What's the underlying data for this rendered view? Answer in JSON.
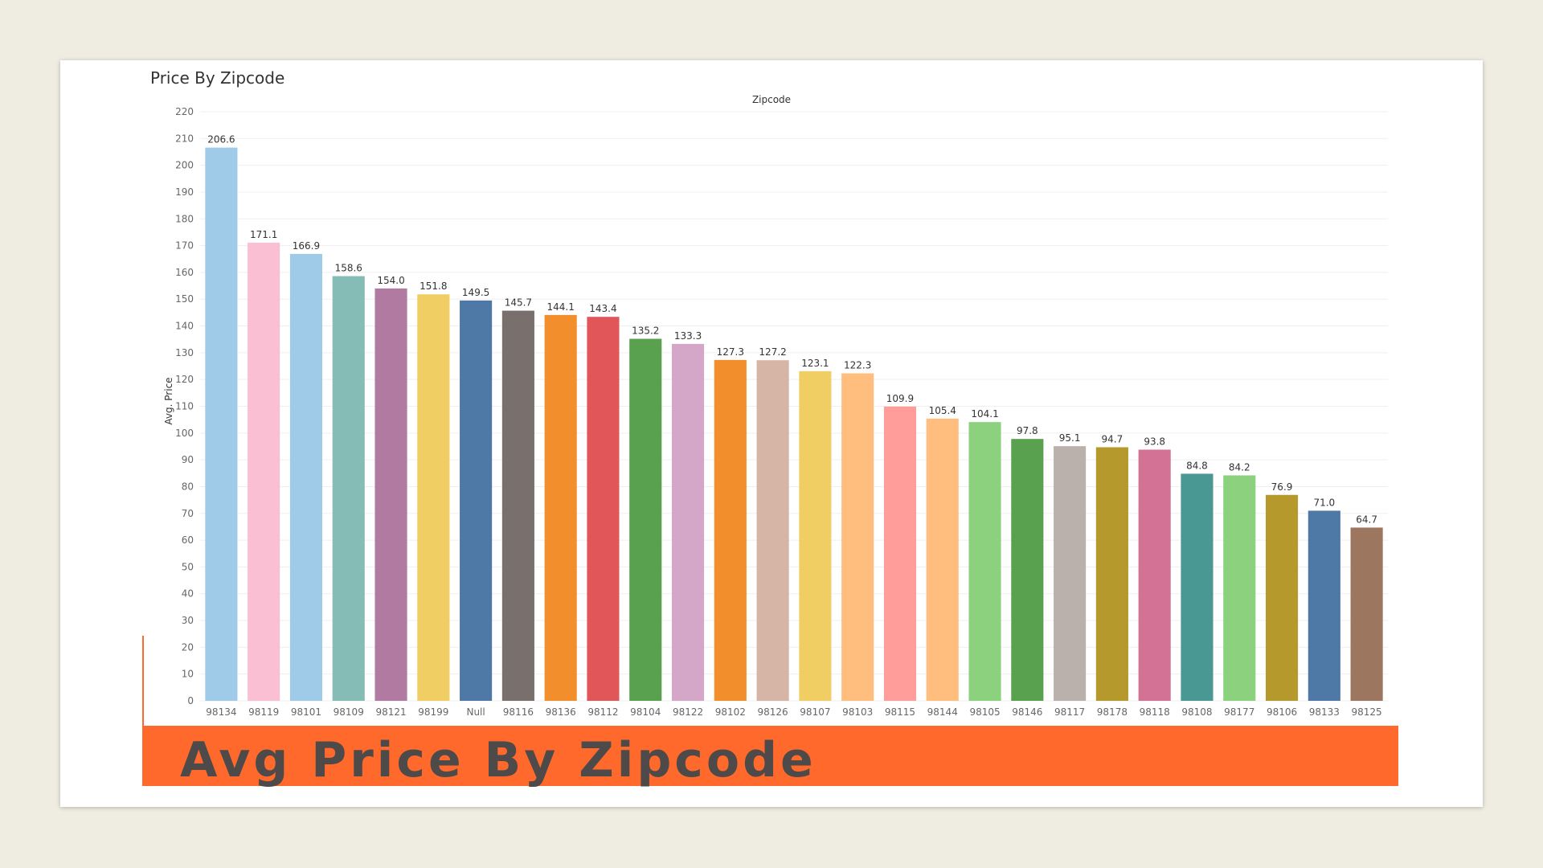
{
  "card": {
    "title": "Price By Zipcode",
    "banner_text": "Avg Price By Zipcode"
  },
  "chart_data": {
    "type": "bar",
    "title": "Price By Zipcode",
    "xlabel": "Zipcode",
    "ylabel": "Avg. Price",
    "ylim": [
      0,
      220
    ],
    "yticks": [
      0,
      10,
      20,
      30,
      40,
      50,
      60,
      70,
      80,
      90,
      100,
      110,
      120,
      130,
      140,
      150,
      160,
      170,
      180,
      190,
      200,
      210,
      220
    ],
    "grid": true,
    "categories": [
      "98134",
      "98119",
      "98101",
      "98109",
      "98121",
      "98199",
      "Null",
      "98116",
      "98136",
      "98112",
      "98104",
      "98122",
      "98102",
      "98126",
      "98107",
      "98103",
      "98115",
      "98144",
      "98105",
      "98146",
      "98117",
      "98178",
      "98118",
      "98108",
      "98177",
      "98106",
      "98133",
      "98125"
    ],
    "values": [
      206.6,
      171.1,
      166.9,
      158.6,
      154.0,
      151.8,
      149.5,
      145.7,
      144.1,
      143.4,
      135.2,
      133.3,
      127.3,
      127.2,
      123.1,
      122.3,
      109.9,
      105.4,
      104.1,
      97.8,
      95.1,
      94.7,
      93.8,
      84.8,
      84.2,
      76.9,
      71.0,
      64.7
    ],
    "value_labels": [
      "206.6",
      "171.1",
      "166.9",
      "158.6",
      "154.0",
      "151.8",
      "149.5",
      "145.7",
      "144.1",
      "143.4",
      "135.2",
      "133.3",
      "127.3",
      "127.2",
      "123.1",
      "122.3",
      "109.9",
      "105.4",
      "104.1",
      "97.8",
      "95.1",
      "94.7",
      "93.8",
      "84.8",
      "84.2",
      "76.9",
      "71.0",
      "64.7"
    ],
    "colors": [
      "#a0cbe8",
      "#fabfd2",
      "#a0cbe8",
      "#86bcb6",
      "#b07aa1",
      "#f1ce63",
      "#4e79a7",
      "#79706e",
      "#f28e2b",
      "#e15759",
      "#59a14f",
      "#d4a6c8",
      "#f28e2b",
      "#d7b5a6",
      "#f1ce63",
      "#ffbe7d",
      "#ff9d9a",
      "#ffbe7d",
      "#8cd17d",
      "#59a14f",
      "#bab0ac",
      "#b6992d",
      "#d37295",
      "#499894",
      "#8cd17d",
      "#b6992d",
      "#4e79a7",
      "#9d7660"
    ]
  },
  "accent_color": "#ff6a2c"
}
